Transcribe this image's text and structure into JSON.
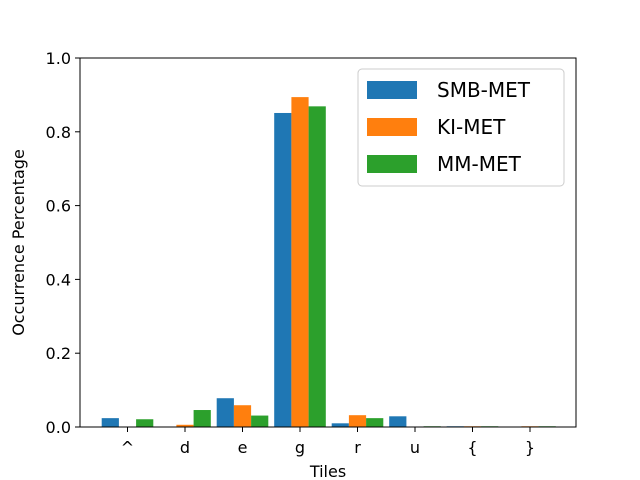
{
  "chart_data": {
    "type": "bar",
    "xlabel": "Tiles",
    "ylabel": "Occurrence Percentage",
    "ylim": [
      0,
      1.0
    ],
    "yticks": [
      "0.0",
      "0.2",
      "0.4",
      "0.6",
      "0.8",
      "1.0"
    ],
    "categories": [
      "^",
      "d",
      "e",
      "g",
      "r",
      "u",
      "{",
      "}"
    ],
    "series": [
      {
        "name": "SMB-MET",
        "color": "#1f77b4",
        "values": [
          0.024,
          0.0,
          0.078,
          0.851,
          0.01,
          0.029,
          0.002,
          0.0
        ]
      },
      {
        "name": "KI-MET",
        "color": "#ff7f0e",
        "values": [
          0.0,
          0.006,
          0.059,
          0.894,
          0.032,
          0.0,
          0.002,
          0.002
        ]
      },
      {
        "name": "MM-MET",
        "color": "#2ca02c",
        "values": [
          0.021,
          0.046,
          0.031,
          0.869,
          0.024,
          0.002,
          0.002,
          0.002
        ]
      }
    ],
    "legend_position": "top-right",
    "grid": false
  }
}
